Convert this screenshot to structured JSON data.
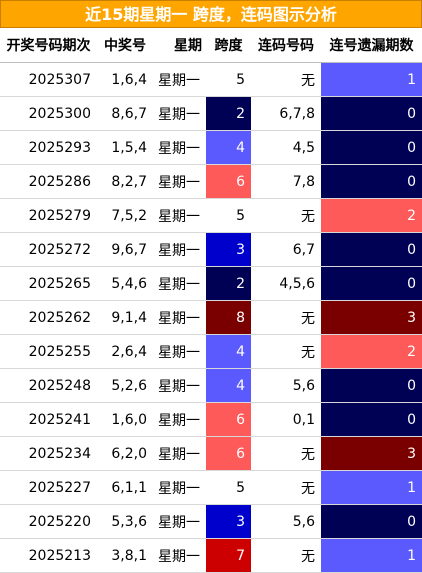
{
  "title": "近15期星期一 跨度，连码图示分析",
  "headers": [
    "开奖号码期次",
    "中奖号",
    "星期",
    "跨度",
    "连码号码",
    "连号遗漏期数"
  ],
  "rows": [
    {
      "period": "2025307",
      "numbers": "1,6,4",
      "weekday": "星期一",
      "span": "5",
      "consecutive": "无",
      "missing": "1",
      "span_color": "#ffffff",
      "missing_color": "#5a5aff"
    },
    {
      "period": "2025300",
      "numbers": "8,6,7",
      "weekday": "星期一",
      "span": "2",
      "consecutive": "6,7,8",
      "missing": "0",
      "span_color": "#000055",
      "missing_color": "#000055"
    },
    {
      "period": "2025293",
      "numbers": "1,5,4",
      "weekday": "星期一",
      "span": "4",
      "consecutive": "4,5",
      "missing": "0",
      "span_color": "#5a5aff",
      "missing_color": "#000055"
    },
    {
      "period": "2025286",
      "numbers": "8,2,7",
      "weekday": "星期一",
      "span": "6",
      "consecutive": "7,8",
      "missing": "0",
      "span_color": "#ff5a5a",
      "missing_color": "#000055"
    },
    {
      "period": "2025279",
      "numbers": "7,5,2",
      "weekday": "星期一",
      "span": "5",
      "consecutive": "无",
      "missing": "2",
      "span_color": "#ffffff",
      "missing_color": "#ff5a5a"
    },
    {
      "period": "2025272",
      "numbers": "9,6,7",
      "weekday": "星期一",
      "span": "3",
      "consecutive": "6,7",
      "missing": "0",
      "span_color": "#0000cc",
      "missing_color": "#000055"
    },
    {
      "period": "2025265",
      "numbers": "5,4,6",
      "weekday": "星期一",
      "span": "2",
      "consecutive": "4,5,6",
      "missing": "0",
      "span_color": "#000055",
      "missing_color": "#000055"
    },
    {
      "period": "2025262",
      "numbers": "9,1,4",
      "weekday": "星期一",
      "span": "8",
      "consecutive": "无",
      "missing": "3",
      "span_color": "#7a0000",
      "missing_color": "#7a0000"
    },
    {
      "period": "2025255",
      "numbers": "2,6,4",
      "weekday": "星期一",
      "span": "4",
      "consecutive": "无",
      "missing": "2",
      "span_color": "#5a5aff",
      "missing_color": "#ff5a5a"
    },
    {
      "period": "2025248",
      "numbers": "5,2,6",
      "weekday": "星期一",
      "span": "4",
      "consecutive": "5,6",
      "missing": "0",
      "span_color": "#5a5aff",
      "missing_color": "#000055"
    },
    {
      "period": "2025241",
      "numbers": "1,6,0",
      "weekday": "星期一",
      "span": "6",
      "consecutive": "0,1",
      "missing": "0",
      "span_color": "#ff5a5a",
      "missing_color": "#000055"
    },
    {
      "period": "2025234",
      "numbers": "6,2,0",
      "weekday": "星期一",
      "span": "6",
      "consecutive": "无",
      "missing": "3",
      "span_color": "#ff5a5a",
      "missing_color": "#7a0000"
    },
    {
      "period": "2025227",
      "numbers": "6,1,1",
      "weekday": "星期一",
      "span": "5",
      "consecutive": "无",
      "missing": "1",
      "span_color": "#ffffff",
      "missing_color": "#5a5aff"
    },
    {
      "period": "2025220",
      "numbers": "5,3,6",
      "weekday": "星期一",
      "span": "3",
      "consecutive": "5,6",
      "missing": "0",
      "span_color": "#0000cc",
      "missing_color": "#000055"
    },
    {
      "period": "2025213",
      "numbers": "3,8,1",
      "weekday": "星期一",
      "span": "7",
      "consecutive": "无",
      "missing": "1",
      "span_color": "#cc0000",
      "missing_color": "#5a5aff"
    }
  ]
}
